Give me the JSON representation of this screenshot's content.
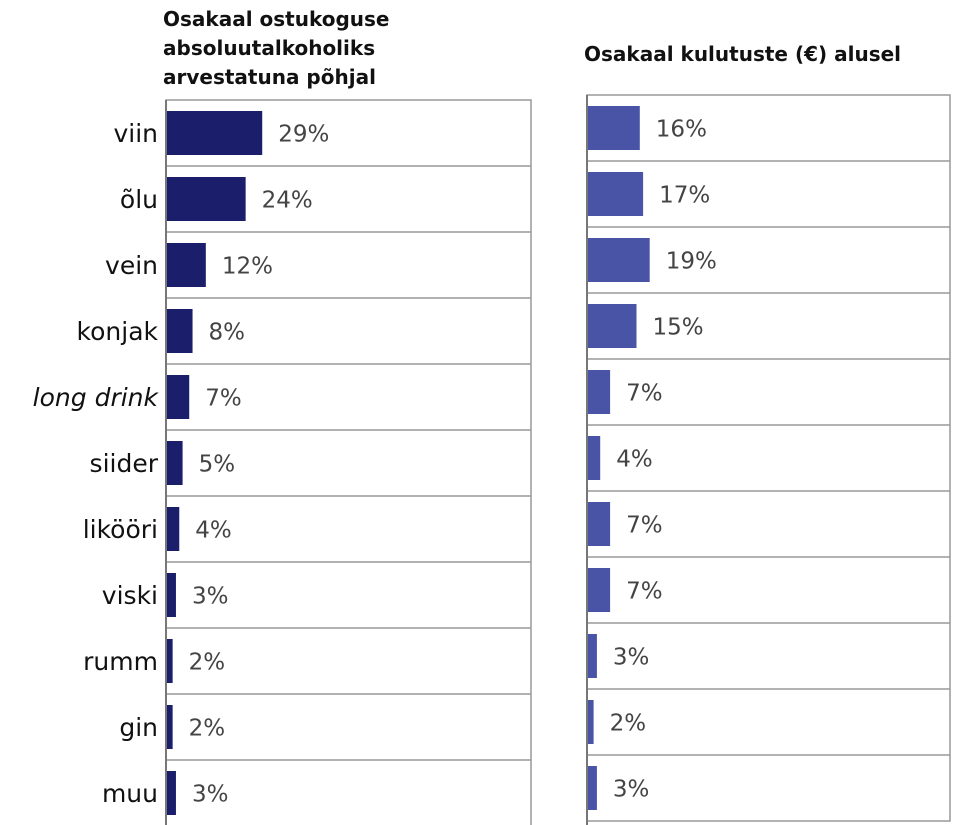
{
  "chart_data": [
    {
      "type": "bar",
      "orientation": "horizontal",
      "title": "Osakaal ostukoguse absoluutalkoholiks arvestatuna põhjal",
      "categories": [
        "viin",
        "õlu",
        "vein",
        "konjak",
        "long drink",
        "siider",
        "likööri",
        "viski",
        "rumm",
        "gin",
        "muu"
      ],
      "values": [
        29,
        24,
        12,
        8,
        7,
        5,
        4,
        3,
        2,
        2,
        3
      ],
      "value_labels": [
        "29%",
        "24%",
        "12%",
        "8%",
        "7%",
        "5%",
        "4%",
        "3%",
        "2%",
        "2%",
        "3%"
      ],
      "color": "#1b1f6b",
      "xlim": [
        0,
        110
      ]
    },
    {
      "type": "bar",
      "orientation": "horizontal",
      "title": "Osakaal kulutuste (€) alusel",
      "values": [
        16,
        17,
        19,
        15,
        7,
        4,
        7,
        7,
        3,
        2,
        3
      ],
      "value_labels": [
        "16%",
        "17%",
        "19%",
        "15%",
        "7%",
        "4%",
        "7%",
        "7%",
        "3%",
        "2%",
        "3%"
      ],
      "color": "#4954a6",
      "xlim": [
        0,
        110
      ]
    }
  ]
}
